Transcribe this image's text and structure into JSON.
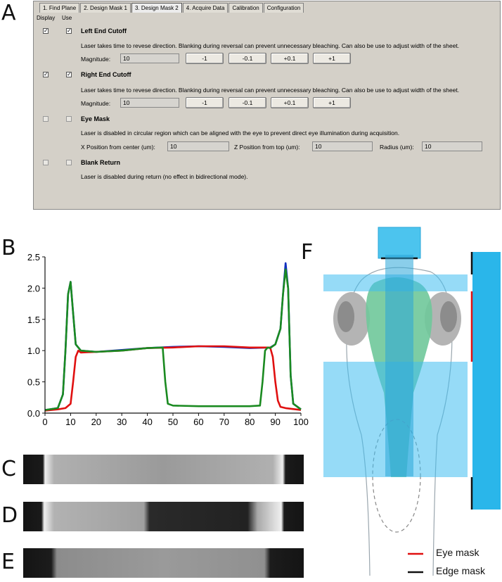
{
  "panel_labels": {
    "a": "A",
    "b": "B",
    "c": "C",
    "d": "D",
    "e": "E",
    "f": "F"
  },
  "software_panel": {
    "tabs": [
      "1. Find Plane",
      "2. Design Mask 1",
      "3. Design Mask 2",
      "4. Acquire Data",
      "Calibration",
      "Configuration"
    ],
    "active_tab": "3. Design Mask 2",
    "col_display": "Display",
    "col_use": "Use",
    "sections": [
      {
        "title": "Left End Cutoff",
        "display": true,
        "use": true,
        "desc": "Laser takes time to revese direction. Blanking during reversal can prevent unnecessary bleaching. Can also be use to adjust width of the sheet.",
        "magnitude_label": "Magnitude:",
        "magnitude_value": "10",
        "buttons": [
          "-1",
          "-0.1",
          "+0.1",
          "+1"
        ]
      },
      {
        "title": "Right End Cutoff",
        "display": true,
        "use": true,
        "desc": "Laser takes time to revese direction. Blanking during reversal can prevent unnecessary bleaching. Can also be use to adjust width of the sheet.",
        "magnitude_label": "Magnitude:",
        "magnitude_value": "10",
        "buttons": [
          "-1",
          "-0.1",
          "+0.1",
          "+1"
        ]
      },
      {
        "title": "Eye Mask",
        "display": false,
        "use": false,
        "desc": "Laser is disabled in circular region which can be aligned with the eye to prevent direct eye illumination during acquisition.",
        "x_label": "X Position from center (um):",
        "x_value": "10",
        "z_label": "Z Position from top (um):",
        "z_value": "10",
        "r_label": "Radius (um):",
        "r_value": "10"
      },
      {
        "title": "Blank Return",
        "display": false,
        "use": false,
        "desc": "Laser is disabled during return (no effect in bidirectional mode)."
      }
    ]
  },
  "chart_data": {
    "type": "line",
    "title": "",
    "xlabel": "",
    "ylabel": "",
    "xlim": [
      0,
      100
    ],
    "ylim": [
      0,
      2.5
    ],
    "xticks": [
      0,
      10,
      20,
      30,
      40,
      50,
      60,
      70,
      80,
      90,
      100
    ],
    "yticks": [
      0.0,
      0.5,
      1.0,
      1.5,
      2.0,
      2.5
    ],
    "ytick_labels": [
      "0.0",
      "0.5",
      "1.0",
      "1.5",
      "2.0",
      "2.5"
    ],
    "series": [
      {
        "color": "#1030c0",
        "x": [
          0,
          5,
          7,
          8,
          9,
          10,
          11,
          12,
          14,
          20,
          30,
          40,
          50,
          60,
          70,
          80,
          88,
          90,
          92,
          93,
          94,
          95,
          96,
          97,
          100
        ],
        "y": [
          0.05,
          0.08,
          0.3,
          1.0,
          1.9,
          2.1,
          1.6,
          1.1,
          1.0,
          0.98,
          1.01,
          1.04,
          1.06,
          1.07,
          1.06,
          1.04,
          1.05,
          1.1,
          1.35,
          1.9,
          2.4,
          2.0,
          0.6,
          0.15,
          0.06
        ]
      },
      {
        "color": "#e01010",
        "x": [
          0,
          5,
          8,
          10,
          11,
          12,
          13,
          14,
          20,
          30,
          40,
          50,
          60,
          70,
          80,
          88,
          89,
          90,
          91,
          92,
          94,
          96,
          100
        ],
        "y": [
          0.04,
          0.06,
          0.08,
          0.15,
          0.5,
          0.9,
          1.0,
          0.97,
          0.98,
          1.0,
          1.04,
          1.05,
          1.07,
          1.07,
          1.05,
          1.05,
          0.9,
          0.5,
          0.2,
          0.1,
          0.08,
          0.07,
          0.05
        ]
      },
      {
        "color": "#1a8a20",
        "x": [
          0,
          5,
          7,
          8,
          9,
          10,
          11,
          12,
          14,
          20,
          30,
          40,
          46,
          47,
          48,
          50,
          60,
          70,
          80,
          84,
          85,
          86,
          87,
          88,
          90,
          92,
          93,
          94,
          95,
          96,
          97,
          100
        ],
        "y": [
          0.05,
          0.08,
          0.3,
          1.0,
          1.9,
          2.1,
          1.6,
          1.1,
          1.0,
          0.98,
          1.0,
          1.04,
          1.05,
          0.5,
          0.15,
          0.12,
          0.11,
          0.11,
          0.11,
          0.12,
          0.5,
          1.0,
          1.05,
          1.04,
          1.1,
          1.35,
          1.9,
          2.3,
          2.0,
          0.6,
          0.15,
          0.06
        ]
      }
    ]
  },
  "legend_f": {
    "eye_mask": "Eye mask",
    "edge_mask": "Edge mask",
    "eye_color": "#e01010",
    "edge_color": "#111111"
  }
}
